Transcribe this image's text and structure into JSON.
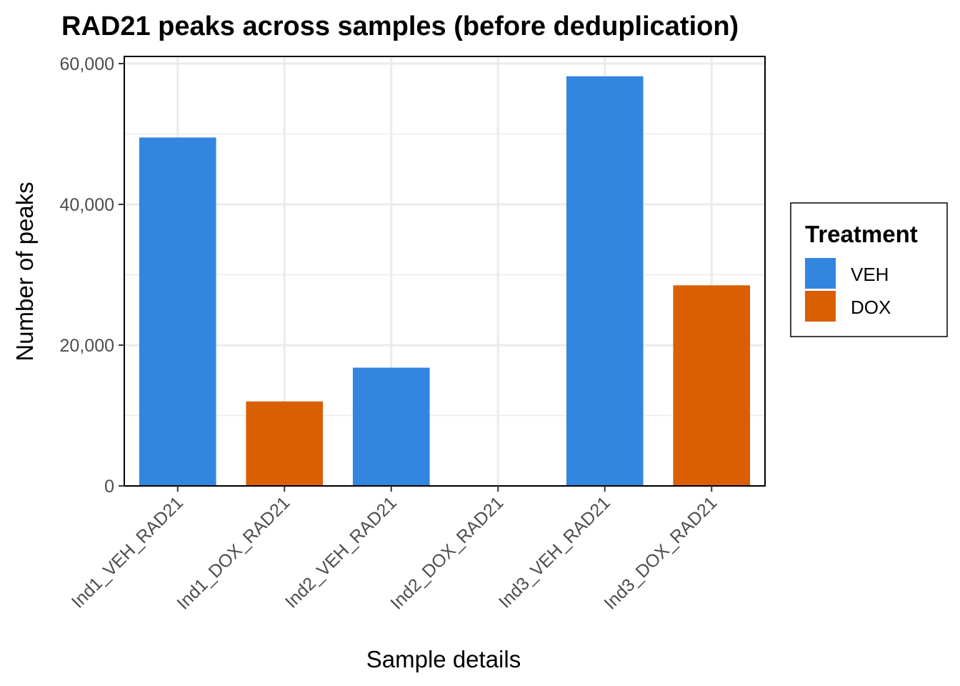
{
  "chart_data": {
    "type": "bar",
    "title": "RAD21 peaks across samples (before deduplication)",
    "xlabel": "Sample details",
    "ylabel": "Number of peaks",
    "categories": [
      "Ind1_VEH_RAD21",
      "Ind1_DOX_RAD21",
      "Ind2_VEH_RAD21",
      "Ind2_DOX_RAD21",
      "Ind3_VEH_RAD21",
      "Ind3_DOX_RAD21"
    ],
    "values": [
      49500,
      12000,
      16800,
      0,
      58200,
      28500
    ],
    "treatment": [
      "VEH",
      "DOX",
      "VEH",
      "DOX",
      "VEH",
      "DOX"
    ],
    "ylim": [
      0,
      60000
    ],
    "yticks": [
      0,
      20000,
      40000,
      60000
    ],
    "ytick_labels": [
      "0",
      "20,000",
      "40,000",
      "60,000"
    ],
    "grid": true,
    "legend": {
      "title": "Treatment",
      "position": "right",
      "entries": [
        {
          "label": "VEH",
          "color": "#3386e0"
        },
        {
          "label": "DOX",
          "color": "#d95f02"
        }
      ]
    }
  }
}
